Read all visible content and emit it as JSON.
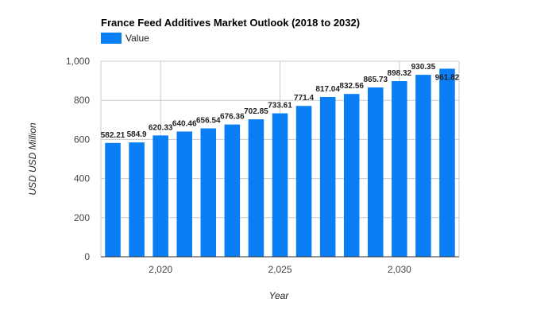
{
  "chart_data": {
    "type": "bar",
    "title": "France Feed Additives Market Outlook (2018 to 2032)",
    "legend": {
      "entries": [
        "Value"
      ],
      "position": "top-left"
    },
    "categories": [
      2018,
      2019,
      2020,
      2021,
      2022,
      2023,
      2024,
      2025,
      2026,
      2027,
      2028,
      2029,
      2030,
      2031,
      2032
    ],
    "series": [
      {
        "name": "Value",
        "color": "#0a7ff5",
        "values": [
          582.21,
          584.9,
          620.33,
          640.46,
          656.54,
          676.36,
          702.85,
          733.61,
          771.4,
          817.04,
          832.56,
          865.73,
          898.32,
          930.35,
          961.82
        ],
        "labels": [
          "582.21",
          "584.9",
          "620.33",
          "640.46",
          "656.54",
          "676.36",
          "702.85",
          "733.61",
          "771.4",
          "817.04",
          "832.56",
          "865.73",
          "898.32",
          "930.35",
          "961.82"
        ]
      }
    ],
    "xlabel": "Year",
    "ylabel": "USD USD Million",
    "ylim": [
      0,
      1000
    ],
    "yticks": [
      0,
      200,
      400,
      600,
      800,
      1000
    ],
    "ytick_labels": [
      "0",
      "200",
      "400",
      "600",
      "800",
      "1,000"
    ],
    "xticks": [
      2020,
      2025,
      2030
    ],
    "xtick_labels": [
      "2,020",
      "2,025",
      "2,030"
    ],
    "grid": true
  }
}
